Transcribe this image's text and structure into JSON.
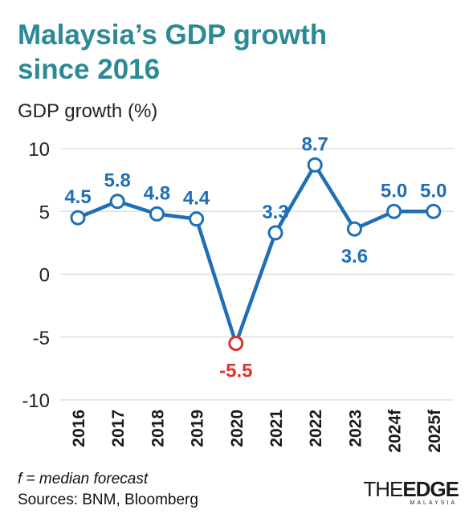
{
  "title_line1": "Malaysia’s GDP growth",
  "title_line2": "since 2016",
  "footnote": "f = median forecast",
  "sources": "Sources: BNM, Bloomberg",
  "logo": {
    "prefix": "THE",
    "main": "EDGE",
    "sub": "MALAYSIA"
  },
  "colors": {
    "title": "#2b8a95",
    "line": "#1f6fb7",
    "negative": "#e03127",
    "grid": "#d9d9d9"
  },
  "chart_data": {
    "type": "line",
    "ylabel": "GDP growth (%)",
    "categories": [
      "2016",
      "2017",
      "2018",
      "2019",
      "2020",
      "2021",
      "2022",
      "2023",
      "2024f",
      "2025f"
    ],
    "values": [
      4.5,
      5.8,
      4.8,
      4.4,
      -5.5,
      3.3,
      8.7,
      3.6,
      5.0,
      5.0
    ],
    "value_labels": [
      "4.5",
      "5.8",
      "4.8",
      "4.4",
      "-5.5",
      "3.3",
      "8.7",
      "3.6",
      "5.0",
      "5.0"
    ],
    "ylim": [
      -10,
      10
    ],
    "yticks": [
      10,
      5,
      0,
      -5,
      -10
    ],
    "grid": true
  }
}
